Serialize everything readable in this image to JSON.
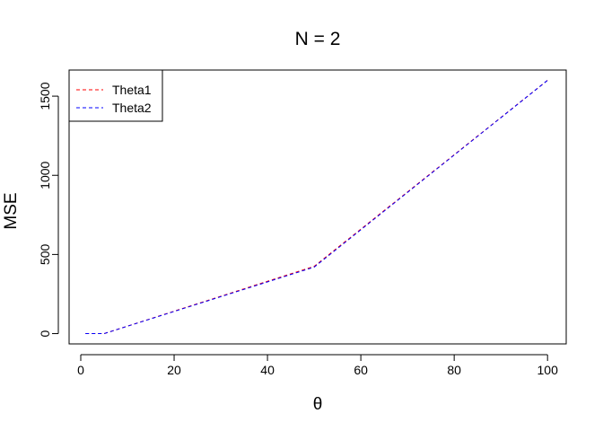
{
  "chart_data": {
    "type": "line",
    "title": "N = 2",
    "xlabel": "θ",
    "ylabel": "MSE",
    "xlim": [
      -2.5,
      104
    ],
    "ylim": [
      -65,
      1665
    ],
    "xticks": [
      0,
      20,
      40,
      60,
      80,
      100
    ],
    "xtick_labels": [
      "0",
      "20",
      "40",
      "60",
      "80",
      "100"
    ],
    "yticks": [
      0,
      500,
      1000,
      1500
    ],
    "ytick_labels": [
      "0",
      "500",
      "1000",
      "1500"
    ],
    "grid": false,
    "legend_position": "top-left",
    "series": [
      {
        "name": "Theta1",
        "color": "#ff0000",
        "line_style": "dashed",
        "x": [
          1,
          5,
          50,
          100
        ],
        "y": [
          0,
          0,
          425,
          1600
        ]
      },
      {
        "name": "Theta2",
        "color": "#0000ff",
        "line_style": "dashed",
        "x": [
          1,
          5,
          50,
          100
        ],
        "y": [
          0,
          0,
          420,
          1600
        ]
      }
    ]
  }
}
